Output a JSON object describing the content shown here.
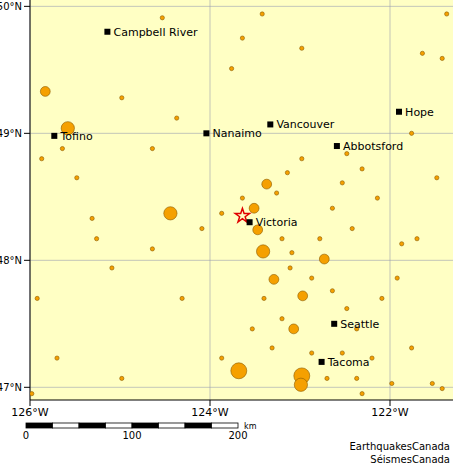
{
  "chart_data": {
    "type": "scatter",
    "marker": "circle",
    "color": "#f5a000",
    "grid": true,
    "xlim": [
      -126,
      -121.3
    ],
    "ylim": [
      46.9,
      50.05
    ],
    "xticks": [
      {
        "value": -126,
        "label": "126°W"
      },
      {
        "value": -124,
        "label": "124°W"
      },
      {
        "value": -122,
        "label": "122°W"
      }
    ],
    "yticks": [
      {
        "value": 47,
        "label": "47°N"
      },
      {
        "value": 48,
        "label": "48°N"
      },
      {
        "value": 49,
        "label": "49°N"
      },
      {
        "value": 50,
        "label": "50°N"
      }
    ],
    "x": [
      -123.68,
      -122.98,
      -124.44,
      -125.58,
      -123.41,
      -125.83,
      -122.97,
      -122.99,
      -123.51,
      -123.37,
      -123.47,
      -123.29,
      -122.73,
      -123.07,
      -123.4,
      -123.2,
      -123.09,
      -122.87,
      -122.64,
      -122.48,
      -122.37,
      -122.53,
      -122.7,
      -122.87,
      -123.2,
      -123.31,
      -123.53,
      -123.87,
      -122.2,
      -122.09,
      -121.92,
      -121.76,
      -121.53,
      -121.42,
      -121.7,
      -122.14,
      -122.31,
      -122.48,
      -122.53,
      -122.98,
      -123.14,
      -123.26,
      -123.64,
      -123.87,
      -124.09,
      -124.64,
      -125.09,
      -125.26,
      -125.31,
      -125.48,
      -125.87,
      -125.64,
      -124.98,
      -124.64,
      -124.37,
      -123.76,
      -123.64,
      -123.42,
      -122.98,
      -121.64,
      -121.42,
      -121.37,
      -124.53,
      -125.92,
      -125.7,
      -125.98,
      -124.31,
      -124.98,
      -122.31,
      -121.76,
      -122.64,
      -122.78,
      -123.11,
      -122.42,
      -121.48,
      -121.87,
      -122.37,
      -121.98
    ],
    "y": [
      47.13,
      47.09,
      48.37,
      49.04,
      48.07,
      49.33,
      47.72,
      47.02,
      48.41,
      48.6,
      48.24,
      47.85,
      48.01,
      47.46,
      47.7,
      48.17,
      48.06,
      47.86,
      47.76,
      47.62,
      47.46,
      47.27,
      47.07,
      47.27,
      47.54,
      47.31,
      47.46,
      47.23,
      47.23,
      47.7,
      47.86,
      47.31,
      47.03,
      46.99,
      48.17,
      48.49,
      48.72,
      48.84,
      48.61,
      48.8,
      48.69,
      48.53,
      48.49,
      48.37,
      48.25,
      48.09,
      47.94,
      48.17,
      48.33,
      48.65,
      48.8,
      48.88,
      49.28,
      48.88,
      49.12,
      49.51,
      49.75,
      49.94,
      49.67,
      49.63,
      49.59,
      49.94,
      49.91,
      47.7,
      47.23,
      46.95,
      47.7,
      47.07,
      46.95,
      49.0,
      48.41,
      48.17,
      47.94,
      48.25,
      48.65,
      48.13,
      47.07,
      47.03
    ],
    "sizes": [
      4,
      4,
      3,
      3,
      3,
      2,
      2,
      3,
      2,
      2,
      2,
      2,
      2,
      2,
      1,
      1,
      1,
      1,
      1,
      1,
      1,
      1,
      1,
      1,
      1,
      1,
      1,
      1,
      1,
      1,
      1,
      1,
      1,
      1,
      1,
      1,
      1,
      1,
      1,
      1,
      1,
      1,
      1,
      1,
      1,
      1,
      1,
      1,
      1,
      1,
      1,
      1,
      1,
      1,
      1,
      1,
      1,
      1,
      1,
      1,
      1,
      1,
      1,
      1,
      1,
      1,
      1,
      1,
      1,
      1,
      1,
      1,
      1,
      1,
      1,
      1,
      1,
      1
    ],
    "epicenter": {
      "x": -123.64,
      "y": 48.35,
      "color": "#e00000",
      "marker": "star"
    },
    "annotations": [
      {
        "text": "Campbell River",
        "x": -125.14,
        "y": 49.8
      },
      {
        "text": "Tofino",
        "x": -125.73,
        "y": 48.98
      },
      {
        "text": "Nanaimo",
        "x": -124.04,
        "y": 49.0
      },
      {
        "text": "Vancouver",
        "x": -123.33,
        "y": 49.07
      },
      {
        "text": "Hope",
        "x": -121.9,
        "y": 49.17
      },
      {
        "text": "Abbotsford",
        "x": -122.59,
        "y": 48.9
      },
      {
        "text": "Victoria",
        "x": -123.56,
        "y": 48.3
      },
      {
        "text": "Seattle",
        "x": -122.62,
        "y": 47.5
      },
      {
        "text": "Tacoma",
        "x": -122.76,
        "y": 47.2
      }
    ],
    "scale_bar": {
      "ticks": [
        0,
        100,
        200
      ],
      "unit": "km"
    },
    "credits": [
      "EarthquakesCanada",
      "SéismesCanada"
    ]
  }
}
